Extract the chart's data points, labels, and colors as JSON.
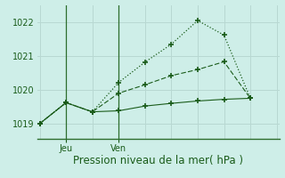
{
  "background_color": "#ceeee8",
  "line_color": "#1a5c1a",
  "grid_color": "#b8d8d2",
  "spine_color": "#2d6e2d",
  "title": "Pression niveau de la mer( hPa )",
  "jeu_x": 1,
  "ven_x": 3,
  "yticks": [
    1019,
    1020,
    1021,
    1022
  ],
  "ylim": [
    1018.55,
    1022.5
  ],
  "xlim": [
    -0.1,
    9.1
  ],
  "n_vcols": 10,
  "line1_x": [
    0,
    1,
    2,
    3,
    4,
    5,
    6,
    7,
    8
  ],
  "line1_y": [
    1019.0,
    1019.62,
    1019.35,
    1019.38,
    1019.52,
    1019.6,
    1019.67,
    1019.72,
    1019.75
  ],
  "line2_x": [
    0,
    1,
    2,
    3,
    4,
    5,
    6,
    7,
    8
  ],
  "line2_y": [
    1019.0,
    1019.62,
    1019.35,
    1019.9,
    1020.15,
    1020.42,
    1020.6,
    1020.83,
    1019.75
  ],
  "line3_x": [
    0,
    1,
    2,
    3,
    4,
    5,
    6,
    7,
    8
  ],
  "line3_y": [
    1019.0,
    1019.62,
    1019.35,
    1020.22,
    1020.82,
    1021.35,
    1022.05,
    1021.62,
    1019.75
  ],
  "title_fontsize": 8.5,
  "tick_fontsize": 7
}
